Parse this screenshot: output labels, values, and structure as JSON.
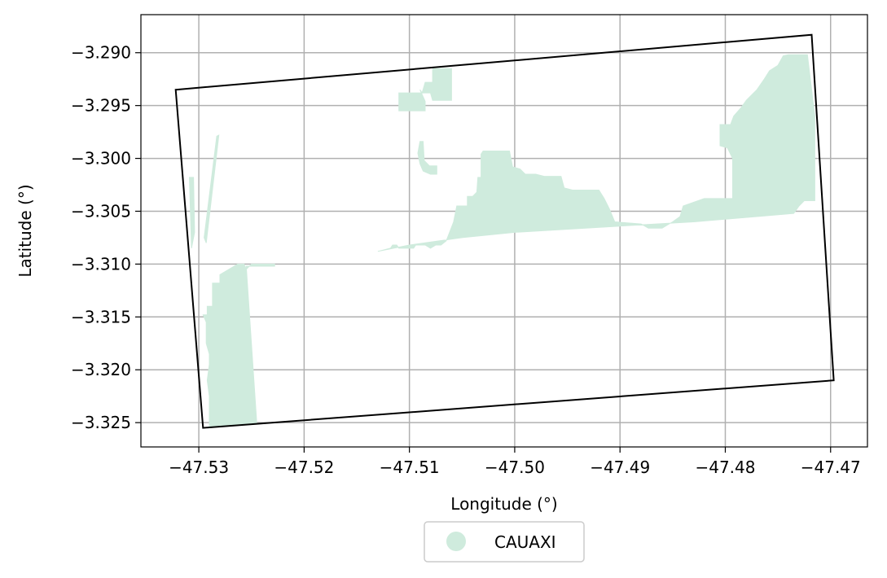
{
  "chart_data": {
    "type": "map",
    "xlabel": "Longitude (°)",
    "ylabel": "Latitude (°)",
    "xlim": [
      -47.5355,
      -47.4665
    ],
    "ylim": [
      -3.3273,
      -3.2864
    ],
    "grid": true,
    "x_ticks": [
      {
        "value": -47.53,
        "label": "−47.53"
      },
      {
        "value": -47.52,
        "label": "−47.52"
      },
      {
        "value": -47.51,
        "label": "−47.51"
      },
      {
        "value": -47.5,
        "label": "−47.50"
      },
      {
        "value": -47.49,
        "label": "−47.49"
      },
      {
        "value": -47.48,
        "label": "−47.48"
      },
      {
        "value": -47.47,
        "label": "−47.47"
      }
    ],
    "y_ticks": [
      {
        "value": -3.29,
        "label": "−3.290"
      },
      {
        "value": -3.295,
        "label": "−3.295"
      },
      {
        "value": -3.3,
        "label": "−3.300"
      },
      {
        "value": -3.305,
        "label": "−3.305"
      },
      {
        "value": -3.31,
        "label": "−3.310"
      },
      {
        "value": -3.315,
        "label": "−3.315"
      },
      {
        "value": -3.32,
        "label": "−3.320"
      },
      {
        "value": -3.325,
        "label": "−3.325"
      }
    ],
    "legend": {
      "placement": "bottom-center",
      "entries": [
        {
          "label": "CAUAXI",
          "color": "#cfebdd"
        }
      ]
    },
    "boundary": {
      "color": "#000000",
      "points": [
        [
          -47.5322,
          -3.2935
        ],
        [
          -47.4718,
          -3.2883
        ],
        [
          -47.4697,
          -3.321
        ],
        [
          -47.5296,
          -3.3255
        ]
      ]
    },
    "regions": [
      {
        "name": "CAUAXI",
        "color": "#cfebdd",
        "polygons": [
          [
            [
              -47.5309,
              -3.3018
            ],
            [
              -47.5305,
              -3.3018
            ],
            [
              -47.5304,
              -3.307
            ],
            [
              -47.5307,
              -3.3085
            ]
          ],
          [
            [
              -47.5293,
              -3.308
            ],
            [
              -47.5281,
              -3.2978
            ],
            [
              -47.5283,
              -3.2979
            ],
            [
              -47.5295,
              -3.3075
            ]
          ],
          [
            [
              -47.5296,
              -3.3148
            ],
            [
              -47.5292,
              -3.3148
            ],
            [
              -47.5292,
              -3.314
            ],
            [
              -47.5287,
              -3.314
            ],
            [
              -47.5287,
              -3.3118
            ],
            [
              -47.528,
              -3.3118
            ],
            [
              -47.528,
              -3.311
            ],
            [
              -47.5263,
              -3.31
            ],
            [
              -47.5257,
              -3.31
            ],
            [
              -47.5255,
              -3.3105
            ],
            [
              -47.525,
              -3.31
            ],
            [
              -47.5228,
              -3.31
            ],
            [
              -47.5228,
              -3.3102
            ],
            [
              -47.5255,
              -3.3102
            ],
            [
              -47.5245,
              -3.325
            ],
            [
              -47.529,
              -3.3255
            ],
            [
              -47.529,
              -3.3225
            ],
            [
              -47.5292,
              -3.321
            ],
            [
              -47.529,
              -3.3195
            ],
            [
              -47.529,
              -3.3185
            ],
            [
              -47.5293,
              -3.3175
            ],
            [
              -47.5293,
              -3.3155
            ]
          ],
          [
            [
              -47.513,
              -3.3088
            ],
            [
              -47.5118,
              -3.3085
            ],
            [
              -47.5116,
              -3.3082
            ],
            [
              -47.5112,
              -3.3082
            ],
            [
              -47.511,
              -3.3085
            ],
            [
              -47.5096,
              -3.3085
            ],
            [
              -47.5094,
              -3.3082
            ],
            [
              -47.5085,
              -3.3082
            ],
            [
              -47.508,
              -3.3085
            ],
            [
              -47.5075,
              -3.3082
            ],
            [
              -47.507,
              -3.3082
            ],
            [
              -47.5065,
              -3.3078
            ],
            [
              -47.506,
              -3.3065
            ],
            [
              -47.5058,
              -3.306
            ],
            [
              -47.5055,
              -3.3045
            ],
            [
              -47.5045,
              -3.3045
            ],
            [
              -47.5045,
              -3.3036
            ],
            [
              -47.504,
              -3.3036
            ],
            [
              -47.5036,
              -3.3032
            ],
            [
              -47.5035,
              -3.3018
            ],
            [
              -47.5032,
              -3.3018
            ],
            [
              -47.5032,
              -3.2996
            ],
            [
              -47.503,
              -3.2993
            ],
            [
              -47.5005,
              -3.2993
            ],
            [
              -47.5002,
              -3.3008
            ],
            [
              -47.4995,
              -3.301
            ],
            [
              -47.499,
              -3.3015
            ],
            [
              -47.498,
              -3.3015
            ],
            [
              -47.4972,
              -3.3017
            ],
            [
              -47.4956,
              -3.3017
            ],
            [
              -47.4953,
              -3.3028
            ],
            [
              -47.4945,
              -3.303
            ],
            [
              -47.492,
              -3.303
            ],
            [
              -47.4915,
              -3.3038
            ],
            [
              -47.491,
              -3.3048
            ],
            [
              -47.4905,
              -3.306
            ],
            [
              -47.488,
              -3.3062
            ],
            [
              -47.4873,
              -3.3066
            ],
            [
              -47.486,
              -3.3066
            ],
            [
              -47.485,
              -3.306
            ],
            [
              -47.4843,
              -3.3055
            ],
            [
              -47.484,
              -3.3045
            ],
            [
              -47.482,
              -3.3038
            ],
            [
              -47.4793,
              -3.3038
            ],
            [
              -47.4793,
              -3.3
            ],
            [
              -47.4798,
              -3.299
            ],
            [
              -47.4805,
              -3.2988
            ],
            [
              -47.4805,
              -3.2968
            ],
            [
              -47.4795,
              -3.2968
            ],
            [
              -47.4792,
              -3.296
            ],
            [
              -47.4785,
              -3.2952
            ],
            [
              -47.478,
              -3.2945
            ],
            [
              -47.477,
              -3.2935
            ],
            [
              -47.4763,
              -3.2925
            ],
            [
              -47.4758,
              -3.2917
            ],
            [
              -47.475,
              -3.2912
            ],
            [
              -47.4745,
              -3.2903
            ],
            [
              -47.474,
              -3.2902
            ],
            [
              -47.4722,
              -3.2902
            ],
            [
              -47.4715,
              -3.296
            ],
            [
              -47.4715,
              -3.304
            ],
            [
              -47.472,
              -3.304
            ],
            [
              -47.4725,
              -3.304
            ],
            [
              -47.473,
              -3.3045
            ],
            [
              -47.4735,
              -3.3052
            ],
            [
              -47.477,
              -3.3055
            ],
            [
              -47.483,
              -3.306
            ],
            [
              -47.49,
              -3.3064
            ],
            [
              -47.5,
              -3.307
            ],
            [
              -47.505,
              -3.3075
            ],
            [
              -47.51,
              -3.3082
            ]
          ],
          [
            [
              -47.506,
              -3.2915
            ],
            [
              -47.5078,
              -3.2915
            ],
            [
              -47.5078,
              -3.2928
            ],
            [
              -47.5085,
              -3.2928
            ],
            [
              -47.5088,
              -3.2938
            ],
            [
              -47.508,
              -3.2938
            ],
            [
              -47.5078,
              -3.2945
            ],
            [
              -47.506,
              -3.2945
            ],
            [
              -47.506,
              -3.2915
            ]
          ],
          [
            [
              -47.509,
              -3.2935
            ],
            [
              -47.5088,
              -3.2938
            ],
            [
              -47.511,
              -3.2938
            ],
            [
              -47.511,
              -3.2955
            ],
            [
              -47.5085,
              -3.2955
            ],
            [
              -47.5085,
              -3.2946
            ],
            [
              -47.509,
              -3.2935
            ]
          ],
          [
            [
              -47.509,
              -3.2984
            ],
            [
              -47.5087,
              -3.2984
            ],
            [
              -47.5086,
              -3.3002
            ],
            [
              -47.5081,
              -3.3007
            ],
            [
              -47.5074,
              -3.3007
            ],
            [
              -47.5074,
              -3.3015
            ],
            [
              -47.508,
              -3.3015
            ],
            [
              -47.5087,
              -3.3012
            ],
            [
              -47.509,
              -3.3005
            ],
            [
              -47.5092,
              -3.2995
            ],
            [
              -47.509,
              -3.2984
            ]
          ]
        ]
      }
    ]
  }
}
